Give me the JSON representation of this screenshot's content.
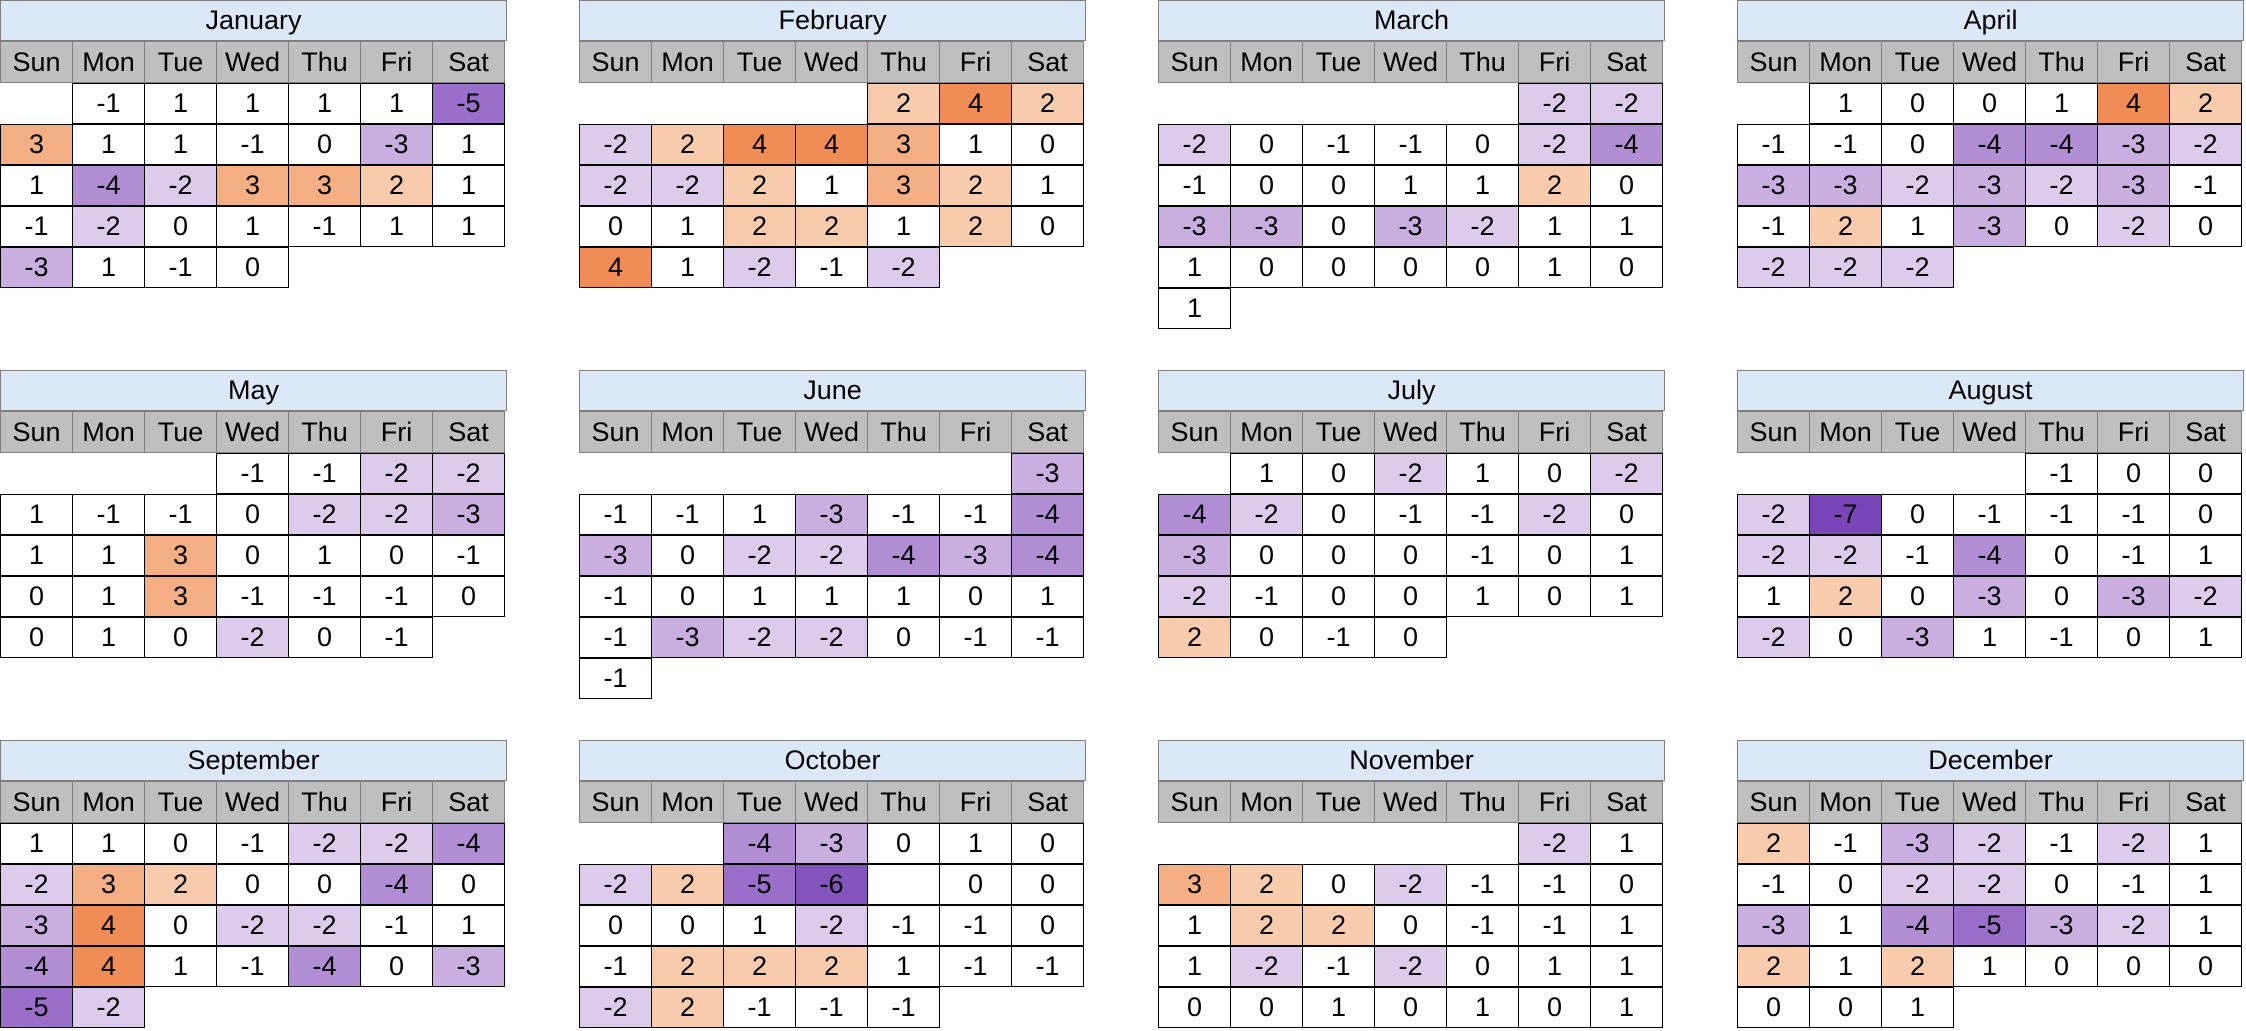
{
  "weekdays": [
    "Sun",
    "Mon",
    "Tue",
    "Wed",
    "Thu",
    "Fri",
    "Sat"
  ],
  "colors": {
    "pos1": "#ffffff",
    "pos2": "#f8cbad",
    "pos3": "#f4b084",
    "pos4": "#f08c55",
    "neg1": "#ffffff",
    "neg2": "#dccbeb",
    "neg3": "#c9afe0",
    "neg4": "#b18dd4",
    "neg5": "#9a6fc9",
    "neg6": "#8454bd",
    "neg7": "#7a45b8",
    "zero": "#ffffff",
    "title_bg": "#dbe8f7",
    "header_bg": "#bfbfbf"
  },
  "chart_data": {
    "type": "table",
    "title": "",
    "description": "Calendar heatmap: integer value per day, orange = positive, purple = negative",
    "months": [
      {
        "name": "January",
        "weeks": [
          [
            null,
            -1,
            1,
            1,
            1,
            1,
            -5
          ],
          [
            3,
            1,
            1,
            -1,
            0,
            -3,
            1
          ],
          [
            1,
            -4,
            -2,
            3,
            3,
            2,
            1
          ],
          [
            -1,
            -2,
            0,
            1,
            -1,
            1,
            1
          ],
          [
            -3,
            1,
            -1,
            0
          ]
        ]
      },
      {
        "name": "February",
        "weeks": [
          [
            null,
            null,
            null,
            null,
            2,
            4,
            2
          ],
          [
            -2,
            2,
            4,
            4,
            3,
            1,
            0
          ],
          [
            -2,
            -2,
            2,
            1,
            3,
            2,
            1
          ],
          [
            0,
            1,
            2,
            2,
            1,
            2,
            0
          ],
          [
            4,
            1,
            -2,
            -1,
            -2
          ]
        ]
      },
      {
        "name": "March",
        "weeks": [
          [
            null,
            null,
            null,
            null,
            null,
            -2,
            -2
          ],
          [
            -2,
            0,
            -1,
            -1,
            0,
            -2,
            -4
          ],
          [
            -1,
            0,
            0,
            1,
            1,
            2,
            0
          ],
          [
            -3,
            -3,
            0,
            -3,
            -2,
            1,
            1
          ],
          [
            1,
            0,
            0,
            0,
            0,
            1,
            0
          ],
          [
            1
          ]
        ]
      },
      {
        "name": "April",
        "weeks": [
          [
            null,
            1,
            0,
            0,
            1,
            4,
            2
          ],
          [
            -1,
            -1,
            0,
            -4,
            -4,
            -3,
            -2
          ],
          [
            -3,
            -3,
            -2,
            -3,
            -2,
            -3,
            -1
          ],
          [
            -1,
            2,
            1,
            -3,
            0,
            -2,
            0
          ],
          [
            -2,
            -2,
            -2
          ]
        ]
      },
      {
        "name": "May",
        "weeks": [
          [
            null,
            null,
            null,
            -1,
            -1,
            -2,
            -2
          ],
          [
            1,
            -1,
            -1,
            0,
            -2,
            -2,
            -3
          ],
          [
            1,
            1,
            3,
            0,
            1,
            0,
            -1
          ],
          [
            0,
            1,
            3,
            -1,
            -1,
            -1,
            0
          ],
          [
            0,
            1,
            0,
            -2,
            0,
            -1
          ]
        ]
      },
      {
        "name": "June",
        "weeks": [
          [
            null,
            null,
            null,
            null,
            null,
            null,
            -3
          ],
          [
            -1,
            -1,
            1,
            -3,
            -1,
            -1,
            -4
          ],
          [
            -3,
            0,
            -2,
            -2,
            -4,
            -3,
            -4
          ],
          [
            -1,
            0,
            1,
            1,
            1,
            0,
            1
          ],
          [
            -1,
            -3,
            -2,
            -2,
            0,
            -1,
            -1
          ],
          [
            -1
          ]
        ]
      },
      {
        "name": "July",
        "weeks": [
          [
            null,
            1,
            0,
            -2,
            1,
            0,
            -2
          ],
          [
            -4,
            -2,
            0,
            -1,
            -1,
            -2,
            0
          ],
          [
            -3,
            0,
            0,
            0,
            -1,
            0,
            1
          ],
          [
            -2,
            -1,
            0,
            0,
            1,
            0,
            1
          ],
          [
            2,
            0,
            -1,
            0
          ]
        ]
      },
      {
        "name": "August",
        "weeks": [
          [
            null,
            null,
            null,
            null,
            -1,
            0,
            0
          ],
          [
            -2,
            -7,
            0,
            -1,
            -1,
            -1,
            0
          ],
          [
            -2,
            -2,
            -1,
            -4,
            0,
            -1,
            1
          ],
          [
            1,
            2,
            0,
            -3,
            0,
            -3,
            -2
          ],
          [
            -2,
            0,
            -3,
            1,
            -1,
            0,
            1
          ]
        ]
      },
      {
        "name": "September",
        "weeks": [
          [
            1,
            1,
            0,
            -1,
            -2,
            -2,
            -4
          ],
          [
            -2,
            3,
            2,
            0,
            0,
            -4,
            0
          ],
          [
            -3,
            4,
            0,
            -2,
            -2,
            -1,
            1
          ],
          [
            -4,
            4,
            1,
            -1,
            -4,
            0,
            -3
          ],
          [
            -5,
            -2
          ]
        ]
      },
      {
        "name": "October",
        "weeks": [
          [
            null,
            null,
            -4,
            -3,
            0,
            1,
            0
          ],
          [
            -2,
            2,
            -5,
            -6,
            "",
            0,
            0
          ],
          [
            0,
            0,
            1,
            -2,
            -1,
            -1,
            0
          ],
          [
            -1,
            2,
            2,
            2,
            1,
            -1,
            -1
          ],
          [
            -2,
            2,
            -1,
            -1,
            -1
          ]
        ]
      },
      {
        "name": "November",
        "weeks": [
          [
            null,
            null,
            null,
            null,
            null,
            -2,
            1
          ],
          [
            3,
            2,
            0,
            -2,
            -1,
            -1,
            0
          ],
          [
            1,
            2,
            2,
            0,
            -1,
            -1,
            1
          ],
          [
            1,
            -2,
            -1,
            -2,
            0,
            1,
            1
          ],
          [
            0,
            0,
            1,
            0,
            1,
            0,
            1
          ]
        ]
      },
      {
        "name": "December",
        "weeks": [
          [
            2,
            -1,
            -3,
            -2,
            -1,
            -2,
            1
          ],
          [
            -1,
            0,
            -2,
            -2,
            0,
            -1,
            1
          ],
          [
            -3,
            1,
            -4,
            -5,
            -3,
            -2,
            1
          ],
          [
            2,
            1,
            2,
            1,
            0,
            0,
            0
          ],
          [
            0,
            0,
            1
          ]
        ]
      }
    ]
  }
}
